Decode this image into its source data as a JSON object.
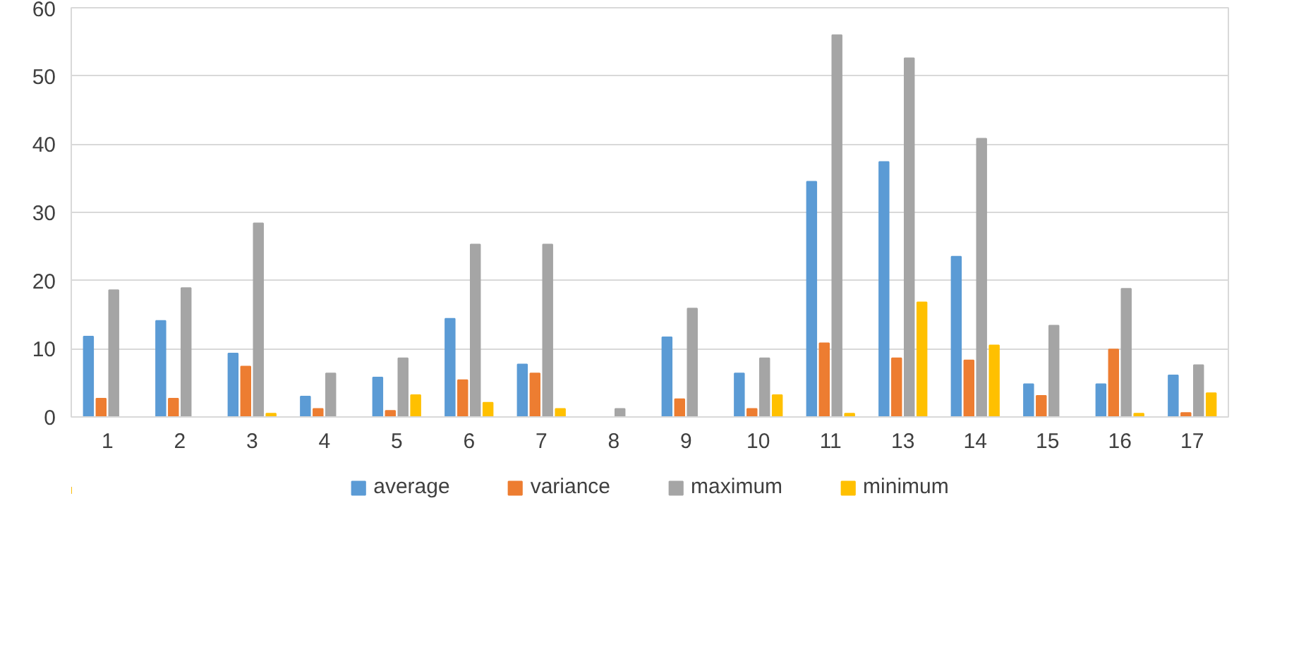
{
  "chart_data": {
    "type": "bar",
    "categories": [
      "1",
      "2",
      "3",
      "4",
      "5",
      "6",
      "7",
      "8",
      "9",
      "10",
      "11",
      "13",
      "14",
      "15",
      "16",
      "17"
    ],
    "series": [
      {
        "name": "average",
        "color": "#5b9bd5",
        "values": [
          11.8,
          14.1,
          9.3,
          3.0,
          5.8,
          14.4,
          7.7,
          0,
          11.7,
          6.4,
          34.5,
          37.4,
          23.5,
          4.8,
          4.8,
          6.1
        ]
      },
      {
        "name": "variance",
        "color": "#ed7d31",
        "values": [
          2.7,
          2.7,
          7.4,
          1.2,
          0.9,
          5.4,
          6.4,
          0,
          2.6,
          1.2,
          10.8,
          8.6,
          8.3,
          3.1,
          9.9,
          0.6
        ]
      },
      {
        "name": "maximum",
        "color": "#a5a5a5",
        "values": [
          18.6,
          18.9,
          28.4,
          6.4,
          8.6,
          25.3,
          25.3,
          1.2,
          15.9,
          8.6,
          56.0,
          52.6,
          40.8,
          13.4,
          18.8,
          7.6
        ]
      },
      {
        "name": "minimum",
        "color": "#ffc000",
        "values": [
          0,
          0,
          0.5,
          0,
          3.2,
          2.1,
          1.2,
          0,
          0,
          3.2,
          0.5,
          16.8,
          10.5,
          0,
          0.5,
          3.5
        ]
      }
    ],
    "ylim": [
      0,
      60
    ],
    "yticks": [
      0,
      10,
      20,
      30,
      40,
      50,
      60
    ],
    "grid": "y",
    "legend": "bottom"
  }
}
